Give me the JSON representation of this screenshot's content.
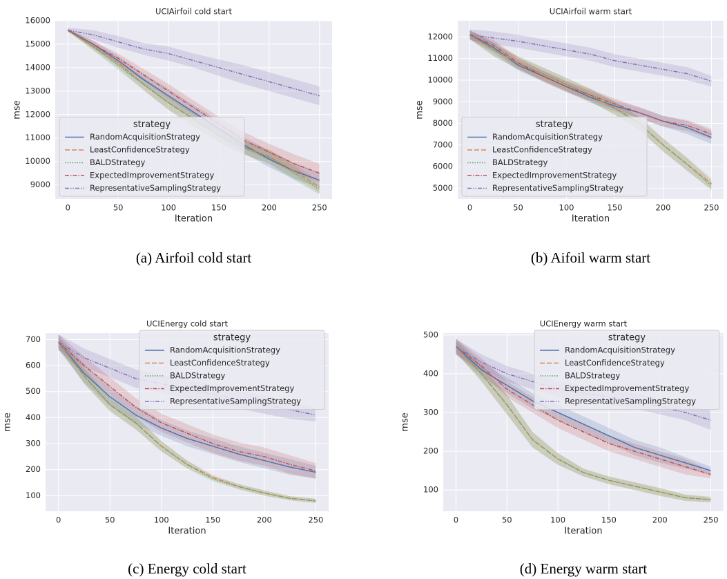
{
  "chart_data": [
    {
      "type": "line",
      "title": "UCIAirfoil cold start",
      "caption": "(a) Airfoil cold start",
      "xlabel": "Iteration",
      "ylabel": "mse",
      "x": [
        0,
        25,
        50,
        75,
        100,
        125,
        150,
        175,
        200,
        225,
        250
      ],
      "xlim": [
        -12.5,
        262.5
      ],
      "xticks": [
        0,
        50,
        100,
        150,
        200,
        250
      ],
      "ylim": [
        8400,
        16000
      ],
      "yticks": [
        9000,
        10000,
        11000,
        12000,
        13000,
        14000,
        15000,
        16000
      ],
      "grid": true,
      "legend_title": "strategy",
      "legend_loc": "lower left",
      "series": [
        {
          "name": "RandomAcquisitionStrategy",
          "color": "#4c72b0",
          "dash": "none",
          "values": [
            15600,
            15000,
            14300,
            13500,
            12800,
            12100,
            11400,
            10700,
            10100,
            9600,
            9200
          ],
          "lower": [
            15550,
            14850,
            14100,
            13250,
            12500,
            11800,
            11050,
            10350,
            9750,
            9250,
            8900
          ],
          "upper": [
            15650,
            15150,
            14500,
            13750,
            13100,
            12400,
            11750,
            11050,
            10450,
            9950,
            9500
          ]
        },
        {
          "name": "LeastConfidenceStrategy",
          "color": "#dd8452",
          "dash": "7,3",
          "values": [
            15600,
            14900,
            14200,
            13300,
            12500,
            11800,
            11100,
            10600,
            10200,
            9600,
            8900
          ],
          "lower": [
            15550,
            14750,
            14000,
            13050,
            12200,
            11500,
            10800,
            10300,
            9900,
            9300,
            8650
          ],
          "upper": [
            15650,
            15050,
            14400,
            13550,
            12800,
            12100,
            11400,
            10900,
            10500,
            9900,
            9150
          ]
        },
        {
          "name": "BALDStrategy",
          "color": "#55a868",
          "dash": "1.5,2",
          "values": [
            15600,
            14900,
            14100,
            13300,
            12500,
            11800,
            11100,
            10600,
            10200,
            9500,
            8800
          ],
          "lower": [
            15550,
            14750,
            13900,
            13050,
            12200,
            11500,
            10800,
            10300,
            9900,
            9200,
            8600
          ],
          "upper": [
            15650,
            15050,
            14300,
            13550,
            12800,
            12100,
            11400,
            10900,
            10500,
            9800,
            9000
          ]
        },
        {
          "name": "ExpectedImprovementStrategy",
          "color": "#c44e52",
          "dash": "6,2,1.5,2",
          "values": [
            15600,
            15000,
            14400,
            13700,
            13000,
            12300,
            11600,
            10900,
            10400,
            9900,
            9500
          ],
          "lower": [
            15550,
            14850,
            14200,
            13450,
            12700,
            12000,
            11300,
            10550,
            10050,
            9500,
            9100
          ],
          "upper": [
            15650,
            15150,
            14600,
            13950,
            13300,
            12600,
            11900,
            11250,
            10750,
            10300,
            9900
          ]
        },
        {
          "name": "RepresentativeSamplingStrategy",
          "color": "#8172b3",
          "dash": "6,2,1.5,2,1.5,2",
          "values": [
            15600,
            15400,
            15100,
            14800,
            14600,
            14300,
            14000,
            13700,
            13400,
            13100,
            12800
          ],
          "lower": [
            15500,
            15200,
            14850,
            14550,
            14300,
            14000,
            13650,
            13300,
            13000,
            12700,
            12400
          ],
          "upper": [
            15700,
            15600,
            15350,
            15050,
            14900,
            14600,
            14350,
            14100,
            13800,
            13500,
            13200
          ]
        }
      ]
    },
    {
      "type": "line",
      "title": "UCIAirfoil warm start",
      "caption": "(b) Aifoil warm start",
      "xlabel": "Iteration",
      "ylabel": "mse",
      "x": [
        0,
        25,
        50,
        75,
        100,
        125,
        150,
        175,
        200,
        225,
        250
      ],
      "xlim": [
        -12.5,
        262.5
      ],
      "xticks": [
        0,
        50,
        100,
        150,
        200,
        250
      ],
      "ylim": [
        4500,
        12750
      ],
      "yticks": [
        5000,
        6000,
        7000,
        8000,
        9000,
        10000,
        11000,
        12000
      ],
      "grid": true,
      "legend_title": "strategy",
      "legend_loc": "lower left",
      "series": [
        {
          "name": "RandomAcquisitionStrategy",
          "color": "#4c72b0",
          "dash": "none",
          "values": [
            12100,
            11500,
            10700,
            10200,
            9700,
            9200,
            8800,
            8500,
            8100,
            7800,
            7350
          ],
          "lower": [
            11900,
            11250,
            10450,
            9950,
            9450,
            8950,
            8550,
            8250,
            7850,
            7500,
            7050
          ],
          "upper": [
            12300,
            11750,
            10950,
            10450,
            9950,
            9450,
            9050,
            8750,
            8350,
            8100,
            7650
          ]
        },
        {
          "name": "LeastConfidenceStrategy",
          "color": "#dd8452",
          "dash": "7,3",
          "values": [
            12100,
            11400,
            10800,
            10300,
            9800,
            9300,
            8700,
            8000,
            7000,
            6100,
            5200
          ],
          "lower": [
            11900,
            11100,
            10500,
            10000,
            9500,
            9000,
            8400,
            7700,
            6700,
            5800,
            4950
          ],
          "upper": [
            12300,
            11700,
            11100,
            10600,
            10100,
            9600,
            9000,
            8300,
            7300,
            6400,
            5450
          ]
        },
        {
          "name": "BALDStrategy",
          "color": "#55a868",
          "dash": "1.5,2",
          "values": [
            12100,
            11400,
            10800,
            10300,
            9800,
            9300,
            8700,
            8000,
            7000,
            6100,
            5100
          ],
          "lower": [
            11900,
            11100,
            10500,
            10000,
            9500,
            9000,
            8400,
            7700,
            6700,
            5800,
            4900
          ],
          "upper": [
            12300,
            11700,
            11100,
            10600,
            10100,
            9600,
            9000,
            8300,
            7300,
            6400,
            5350
          ]
        },
        {
          "name": "ExpectedImprovementStrategy",
          "color": "#c44e52",
          "dash": "6,2,1.5,2",
          "values": [
            12100,
            11600,
            10800,
            10200,
            9700,
            9300,
            8900,
            8500,
            8100,
            7900,
            7500
          ],
          "lower": [
            11900,
            11350,
            10550,
            9950,
            9450,
            9050,
            8650,
            8250,
            7850,
            7650,
            7250
          ],
          "upper": [
            12300,
            11850,
            11050,
            10450,
            9950,
            9550,
            9150,
            8750,
            8350,
            8150,
            7750
          ]
        },
        {
          "name": "RepresentativeSamplingStrategy",
          "color": "#8172b3",
          "dash": "6,2,1.5,2,1.5,2",
          "values": [
            12100,
            11950,
            11800,
            11600,
            11400,
            11200,
            10900,
            10700,
            10500,
            10300,
            9950
          ],
          "lower": [
            11850,
            11650,
            11500,
            11300,
            11100,
            10900,
            10600,
            10400,
            10200,
            10000,
            9700
          ],
          "upper": [
            12350,
            12250,
            12100,
            11900,
            11700,
            11500,
            11200,
            11000,
            10800,
            10600,
            10200
          ]
        }
      ]
    },
    {
      "type": "line",
      "title": "UCIEnergy cold start",
      "caption": "(c) Energy cold start",
      "xlabel": "Iteration",
      "ylabel": "mse",
      "x": [
        0,
        25,
        50,
        75,
        100,
        125,
        150,
        175,
        200,
        225,
        250
      ],
      "xlim": [
        -12.5,
        262.5
      ],
      "xticks": [
        0,
        50,
        100,
        150,
        200,
        250
      ],
      "ylim": [
        40,
        725
      ],
      "yticks": [
        100,
        200,
        300,
        400,
        500,
        600,
        700
      ],
      "grid": true,
      "legend_title": "strategy",
      "legend_loc": "upper right",
      "series": [
        {
          "name": "RandomAcquisitionStrategy",
          "color": "#4c72b0",
          "dash": "none",
          "values": [
            690,
            570,
            480,
            410,
            360,
            320,
            290,
            260,
            235,
            210,
            190
          ],
          "lower": [
            660,
            535,
            445,
            375,
            330,
            290,
            260,
            230,
            205,
            180,
            165
          ],
          "upper": [
            720,
            605,
            515,
            445,
            390,
            350,
            320,
            290,
            265,
            240,
            215
          ]
        },
        {
          "name": "LeastConfidenceStrategy",
          "color": "#dd8452",
          "dash": "7,3",
          "values": [
            690,
            560,
            450,
            380,
            290,
            220,
            170,
            135,
            110,
            90,
            80
          ],
          "lower": [
            670,
            530,
            425,
            355,
            270,
            205,
            160,
            125,
            100,
            82,
            72
          ],
          "upper": [
            710,
            590,
            475,
            405,
            310,
            235,
            180,
            145,
            120,
            98,
            88
          ]
        },
        {
          "name": "BALDStrategy",
          "color": "#55a868",
          "dash": "1.5,2",
          "values": [
            690,
            560,
            450,
            380,
            290,
            220,
            165,
            135,
            110,
            90,
            80
          ],
          "lower": [
            670,
            530,
            425,
            355,
            270,
            205,
            155,
            125,
            100,
            82,
            72
          ],
          "upper": [
            710,
            590,
            475,
            405,
            310,
            235,
            175,
            145,
            120,
            98,
            88
          ]
        },
        {
          "name": "ExpectedImprovementStrategy",
          "color": "#c44e52",
          "dash": "6,2,1.5,2",
          "values": [
            690,
            600,
            520,
            440,
            380,
            340,
            300,
            270,
            250,
            220,
            195
          ],
          "lower": [
            660,
            565,
            485,
            405,
            345,
            305,
            265,
            235,
            215,
            185,
            165
          ],
          "upper": [
            720,
            635,
            555,
            475,
            415,
            375,
            335,
            305,
            285,
            255,
            225
          ]
        },
        {
          "name": "RepresentativeSamplingStrategy",
          "color": "#8172b3",
          "dash": "6,2,1.5,2,1.5,2",
          "values": [
            690,
            630,
            590,
            550,
            530,
            510,
            490,
            470,
            450,
            430,
            410
          ],
          "lower": [
            660,
            595,
            555,
            515,
            495,
            475,
            455,
            435,
            415,
            395,
            385
          ],
          "upper": [
            720,
            665,
            625,
            585,
            565,
            545,
            525,
            505,
            485,
            465,
            435
          ]
        }
      ]
    },
    {
      "type": "line",
      "title": "UCIEnergy warm start",
      "caption": "(d) Energy warm start",
      "xlabel": "Iteration",
      "ylabel": "mse",
      "x": [
        0,
        25,
        50,
        75,
        100,
        125,
        150,
        175,
        200,
        225,
        250
      ],
      "xlim": [
        -12.5,
        262.5
      ],
      "xticks": [
        0,
        50,
        100,
        150,
        200,
        250
      ],
      "ylim": [
        45,
        505
      ],
      "yticks": [
        100,
        200,
        300,
        400,
        500
      ],
      "grid": true,
      "legend_title": "strategy",
      "legend_loc": "upper right",
      "series": [
        {
          "name": "RandomAcquisitionStrategy",
          "color": "#4c72b0",
          "dash": "none",
          "values": [
            470,
            410,
            370,
            330,
            300,
            270,
            240,
            210,
            190,
            170,
            150
          ],
          "lower": [
            450,
            390,
            350,
            310,
            280,
            250,
            220,
            190,
            170,
            155,
            140
          ],
          "upper": [
            490,
            430,
            390,
            350,
            320,
            290,
            260,
            230,
            210,
            185,
            160
          ]
        },
        {
          "name": "LeastConfidenceStrategy",
          "color": "#dd8452",
          "dash": "7,3",
          "values": [
            470,
            400,
            320,
            230,
            180,
            145,
            125,
            110,
            95,
            80,
            75
          ],
          "lower": [
            455,
            380,
            295,
            210,
            165,
            135,
            115,
            100,
            85,
            72,
            68
          ],
          "upper": [
            485,
            420,
            345,
            250,
            195,
            155,
            135,
            120,
            105,
            88,
            82
          ]
        },
        {
          "name": "BALDStrategy",
          "color": "#55a868",
          "dash": "1.5,2",
          "values": [
            470,
            400,
            320,
            230,
            180,
            145,
            125,
            110,
            95,
            80,
            75
          ],
          "lower": [
            455,
            380,
            295,
            210,
            165,
            135,
            115,
            100,
            85,
            72,
            68
          ],
          "upper": [
            485,
            420,
            345,
            250,
            195,
            155,
            135,
            120,
            105,
            88,
            82
          ]
        },
        {
          "name": "ExpectedImprovementStrategy",
          "color": "#c44e52",
          "dash": "6,2,1.5,2",
          "values": [
            470,
            420,
            360,
            320,
            280,
            250,
            220,
            200,
            180,
            160,
            140
          ],
          "lower": [
            450,
            400,
            340,
            300,
            260,
            230,
            200,
            180,
            160,
            140,
            130
          ],
          "upper": [
            490,
            440,
            380,
            340,
            300,
            270,
            240,
            220,
            200,
            180,
            150
          ]
        },
        {
          "name": "RepresentativeSamplingStrategy",
          "color": "#8172b3",
          "dash": "6,2,1.5,2,1.5,2",
          "values": [
            470,
            430,
            400,
            380,
            360,
            350,
            340,
            330,
            315,
            300,
            280
          ],
          "lower": [
            450,
            410,
            380,
            360,
            340,
            330,
            320,
            310,
            295,
            280,
            255
          ],
          "upper": [
            490,
            450,
            420,
            400,
            380,
            370,
            360,
            350,
            335,
            320,
            305
          ]
        }
      ]
    }
  ]
}
